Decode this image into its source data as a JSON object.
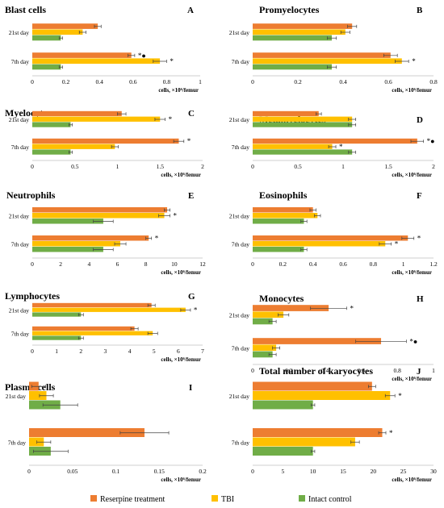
{
  "colors": {
    "reserpine": "#ED7D31",
    "tbi": "#FFC000",
    "intact": "#70AD47",
    "axis": "#bfbfbf",
    "errbar": "#404040"
  },
  "legend": {
    "items": [
      {
        "label": "Reserpine treatment",
        "color": "#ED7D31"
      },
      {
        "label": "TBI",
        "color": "#FFC000"
      },
      {
        "label": "Intact control",
        "color": "#70AD47"
      }
    ]
  },
  "chart_data": [
    {
      "type": "bar",
      "orientation": "horizontal",
      "title": "Blast cells",
      "letter": "A",
      "xlabel": "cells, ×10⁶/femur",
      "xlim": [
        0,
        1
      ],
      "ticks": [
        "0",
        "0.2",
        "0.4",
        "0.6",
        "0.8",
        "1"
      ],
      "categories": [
        "21st day",
        "7th day"
      ],
      "series": [
        {
          "name": "Reserpine treatment",
          "values": [
            0.39,
            0.59
          ],
          "errors": [
            0.02,
            0.02
          ],
          "marks": [
            "",
            "*●"
          ]
        },
        {
          "name": "TBI",
          "values": [
            0.3,
            0.76
          ],
          "errors": [
            0.02,
            0.04
          ],
          "marks": [
            "",
            "*"
          ]
        },
        {
          "name": "Intact control",
          "values": [
            0.17,
            0.17
          ],
          "errors": [
            0.01,
            0.01
          ],
          "marks": [
            "",
            ""
          ]
        }
      ]
    },
    {
      "type": "bar",
      "orientation": "horizontal",
      "title": "Promyelocytes",
      "letter": "B",
      "xlabel": "cells, ×10⁶/femur",
      "xlim": [
        0,
        0.8
      ],
      "ticks": [
        "0",
        "0.2",
        "0.4",
        "0.6",
        "0.8"
      ],
      "categories": [
        "21st day",
        "7th day"
      ],
      "series": [
        {
          "name": "Reserpine treatment",
          "values": [
            0.44,
            0.61
          ],
          "errors": [
            0.02,
            0.03
          ],
          "marks": [
            "",
            ""
          ]
        },
        {
          "name": "TBI",
          "values": [
            0.41,
            0.66
          ],
          "errors": [
            0.02,
            0.03
          ],
          "marks": [
            "",
            "*"
          ]
        },
        {
          "name": "Intact control",
          "values": [
            0.35,
            0.35
          ],
          "errors": [
            0.02,
            0.02
          ],
          "marks": [
            "",
            ""
          ]
        }
      ]
    },
    {
      "type": "bar",
      "orientation": "horizontal",
      "title": "Myelocytes",
      "letter": "C",
      "xlabel": "cells, ×10⁶/femur",
      "xlim": [
        0,
        2
      ],
      "ticks": [
        "0",
        "0.5",
        "1",
        "1.5",
        "2"
      ],
      "categories": [
        "21st day",
        "7th day"
      ],
      "series": [
        {
          "name": "Reserpine treatment",
          "values": [
            1.05,
            1.72
          ],
          "errors": [
            0.05,
            0.06
          ],
          "marks": [
            "",
            "*"
          ]
        },
        {
          "name": "TBI",
          "values": [
            1.5,
            0.97
          ],
          "errors": [
            0.06,
            0.04
          ],
          "marks": [
            "*",
            ""
          ]
        },
        {
          "name": "Intact control",
          "values": [
            0.45,
            0.45
          ],
          "errors": [
            0.02,
            0.02
          ],
          "marks": [
            "",
            ""
          ]
        }
      ]
    },
    {
      "type": "bar",
      "orientation": "horizontal",
      "title": "Metamyelocytes",
      "letter": "D",
      "xlabel": "cells, ×10⁶/femur",
      "xlim": [
        0,
        2
      ],
      "ticks": [
        "0",
        "0.5",
        "1",
        "1.5",
        "2"
      ],
      "categories": [
        "21st day",
        "7th day"
      ],
      "series": [
        {
          "name": "Reserpine treatment",
          "values": [
            0.73,
            1.82
          ],
          "errors": [
            0.03,
            0.07
          ],
          "marks": [
            "",
            "*●"
          ]
        },
        {
          "name": "TBI",
          "values": [
            1.1,
            0.88
          ],
          "errors": [
            0.04,
            0.04
          ],
          "marks": [
            "",
            "*"
          ]
        },
        {
          "name": "Intact control",
          "values": [
            1.1,
            1.1
          ],
          "errors": [
            0.04,
            0.04
          ],
          "marks": [
            "",
            ""
          ]
        }
      ]
    },
    {
      "type": "bar",
      "orientation": "horizontal",
      "title": "Neutrophils",
      "letter": "E",
      "xlabel": "cells, ×10⁶/femur",
      "xlim": [
        0,
        12
      ],
      "ticks": [
        "0",
        "2",
        "4",
        "6",
        "8",
        "10",
        "12"
      ],
      "categories": [
        "21st day",
        "7th day"
      ],
      "series": [
        {
          "name": "Reserpine treatment",
          "values": [
            9.5,
            8.2
          ],
          "errors": [
            0.2,
            0.2
          ],
          "marks": [
            "",
            "*"
          ]
        },
        {
          "name": "TBI",
          "values": [
            9.3,
            6.2
          ],
          "errors": [
            0.4,
            0.4
          ],
          "marks": [
            "*",
            ""
          ]
        },
        {
          "name": "Intact control",
          "values": [
            5.0,
            5.0
          ],
          "errors": [
            0.7,
            0.7
          ],
          "marks": [
            "",
            ""
          ]
        }
      ]
    },
    {
      "type": "bar",
      "orientation": "horizontal",
      "title": "Eosinophils",
      "letter": "F",
      "xlabel": "cells, ×10⁶/femur",
      "xlim": [
        0,
        1.2
      ],
      "ticks": [
        "0",
        "0.2",
        "0.4",
        "0.6",
        "0.8",
        "1",
        "1.2"
      ],
      "categories": [
        "21st day",
        "7th day"
      ],
      "series": [
        {
          "name": "Reserpine treatment",
          "values": [
            0.4,
            1.03
          ],
          "errors": [
            0.02,
            0.04
          ],
          "marks": [
            "",
            "*"
          ]
        },
        {
          "name": "TBI",
          "values": [
            0.43,
            0.88
          ],
          "errors": [
            0.02,
            0.04
          ],
          "marks": [
            "",
            "*"
          ]
        },
        {
          "name": "Intact control",
          "values": [
            0.34,
            0.34
          ],
          "errors": [
            0.02,
            0.02
          ],
          "marks": [
            "",
            ""
          ]
        }
      ]
    },
    {
      "type": "bar",
      "orientation": "horizontal",
      "title": "Lymphocytes",
      "letter": "G",
      "xlabel": "cells, ×10⁶/femur",
      "xlim": [
        0,
        7
      ],
      "ticks": [
        "0",
        "1",
        "2",
        "3",
        "4",
        "5",
        "6",
        "7"
      ],
      "categories": [
        "21st day",
        "7th day"
      ],
      "series": [
        {
          "name": "Reserpine treatment",
          "values": [
            4.9,
            4.2
          ],
          "errors": [
            0.15,
            0.15
          ],
          "marks": [
            "",
            ""
          ]
        },
        {
          "name": "TBI",
          "values": [
            6.3,
            4.95
          ],
          "errors": [
            0.2,
            0.2
          ],
          "marks": [
            "*",
            ""
          ]
        },
        {
          "name": "Intact control",
          "values": [
            2.0,
            2.0
          ],
          "errors": [
            0.1,
            0.1
          ],
          "marks": [
            "",
            ""
          ]
        }
      ]
    },
    {
      "type": "bar",
      "orientation": "horizontal",
      "title": "Monocytes",
      "letter": "H",
      "xlabel": "cells, ×10⁶/femur",
      "xlim": [
        0,
        1
      ],
      "ticks": [
        "0",
        "0.2",
        "0.4",
        "0.6",
        "0.8",
        "1"
      ],
      "categories": [
        "21st day",
        "7th day"
      ],
      "series": [
        {
          "name": "Reserpine treatment",
          "values": [
            0.42,
            0.71
          ],
          "errors": [
            0.1,
            0.14
          ],
          "marks": [
            "*",
            "*●"
          ]
        },
        {
          "name": "TBI",
          "values": [
            0.17,
            0.13
          ],
          "errors": [
            0.03,
            0.02
          ],
          "marks": [
            "",
            ""
          ]
        },
        {
          "name": "Intact control",
          "values": [
            0.11,
            0.11
          ],
          "errors": [
            0.02,
            0.02
          ],
          "marks": [
            "",
            ""
          ]
        }
      ]
    },
    {
      "type": "bar",
      "orientation": "horizontal",
      "title": "Plasma cells",
      "letter": "I",
      "xlabel": "cells, ×10⁶/femur",
      "xlim": [
        0,
        0.2
      ],
      "ticks": [
        "0",
        "0.05",
        "0.1",
        "0.15",
        "0.2"
      ],
      "categories": [
        "21st day",
        "7th day"
      ],
      "series": [
        {
          "name": "Reserpine treatment",
          "values": [
            0.011,
            0.133
          ],
          "errors": [
            0.008,
            0.028
          ],
          "marks": [
            "",
            ""
          ]
        },
        {
          "name": "TBI",
          "values": [
            0.02,
            0.017
          ],
          "errors": [
            0.008,
            0.008
          ],
          "marks": [
            "",
            ""
          ]
        },
        {
          "name": "Intact control",
          "values": [
            0.036,
            0.025
          ],
          "errors": [
            0.02,
            0.02
          ],
          "marks": [
            "",
            ""
          ]
        }
      ]
    },
    {
      "type": "bar",
      "orientation": "horizontal",
      "title": "Total number of karyocytes",
      "letter": "J",
      "xlabel": "cells, ×10⁶/femur",
      "xlim": [
        0,
        30
      ],
      "ticks": [
        "0",
        "5",
        "10",
        "15",
        "20",
        "25",
        "30"
      ],
      "categories": [
        "21st day",
        "7th day"
      ],
      "series": [
        {
          "name": "Reserpine treatment",
          "values": [
            19.8,
            21.5
          ],
          "errors": [
            0.6,
            0.6
          ],
          "marks": [
            "",
            "*"
          ]
        },
        {
          "name": "TBI",
          "values": [
            22.8,
            17.0
          ],
          "errors": [
            0.8,
            0.7
          ],
          "marks": [
            "*",
            ""
          ]
        },
        {
          "name": "Intact control",
          "values": [
            10.0,
            10.0
          ],
          "errors": [
            0.3,
            0.3
          ],
          "marks": [
            "",
            ""
          ]
        }
      ]
    }
  ]
}
